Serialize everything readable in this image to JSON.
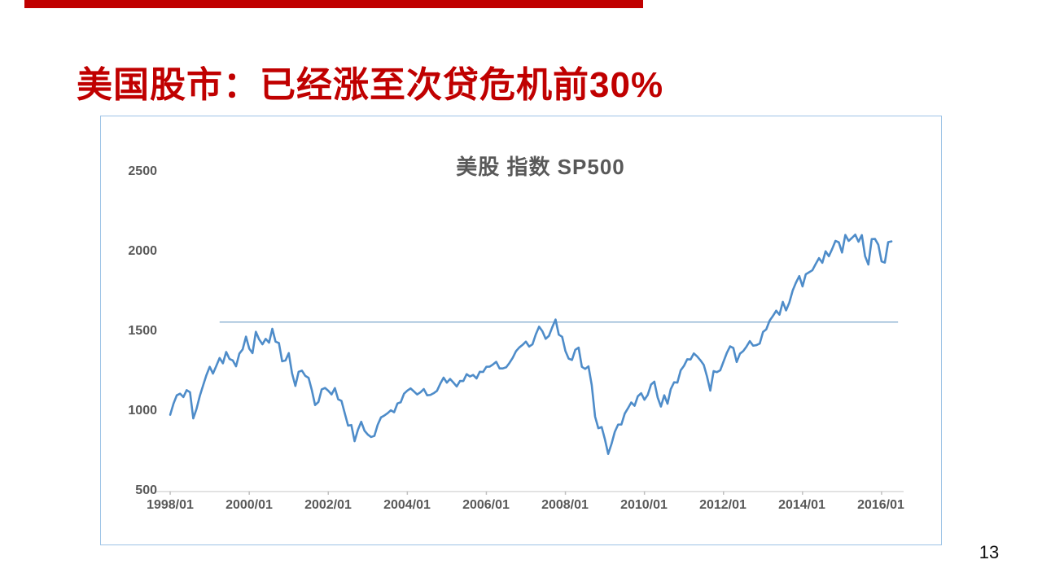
{
  "slide": {
    "title": "美国股市：已经涨至次贷危机前30%",
    "page_number": "13",
    "accent_color": "#c00000"
  },
  "chart_data": {
    "type": "line",
    "title": "美股 指数 SP500",
    "xlabel": "",
    "ylabel": "",
    "ylim": [
      500,
      2500
    ],
    "y_ticks": [
      "2500",
      "2000",
      "1500",
      "1000",
      "500"
    ],
    "y_tick_values": [
      2500,
      2000,
      1500,
      1000,
      500
    ],
    "x_ticks": [
      "1998/01",
      "2000/01",
      "2002/01",
      "2004/01",
      "2006/01",
      "2008/01",
      "2010/01",
      "2012/01",
      "2014/01",
      "2016/01"
    ],
    "x_tick_interval_months": 24,
    "grid": false,
    "legend_position": "none",
    "line_color": "#4e8cc9",
    "axis_line_color": "#d9d9d9",
    "tick_mark_color": "#bfbfbf",
    "text_color": "#595959",
    "reference_line": {
      "value": 1560,
      "color": "#7ba7cc",
      "start_month_index": 15,
      "end_month_index": 221
    },
    "series": [
      {
        "name": "SP500",
        "start": "1998/01",
        "freq": "monthly",
        "values": [
          980,
          1049,
          1102,
          1112,
          1091,
          1134,
          1121,
          957,
          1017,
          1099,
          1164,
          1229,
          1280,
          1238,
          1286,
          1335,
          1302,
          1373,
          1329,
          1320,
          1283,
          1363,
          1389,
          1469,
          1394,
          1366,
          1499,
          1452,
          1421,
          1455,
          1431,
          1518,
          1437,
          1429,
          1315,
          1320,
          1366,
          1240,
          1160,
          1249,
          1256,
          1224,
          1211,
          1134,
          1041,
          1060,
          1139,
          1148,
          1130,
          1107,
          1147,
          1077,
          1067,
          990,
          912,
          916,
          815,
          886,
          936,
          880,
          856,
          841,
          848,
          917,
          964,
          975,
          990,
          1008,
          996,
          1051,
          1058,
          1112,
          1131,
          1145,
          1126,
          1107,
          1121,
          1141,
          1102,
          1104,
          1115,
          1130,
          1174,
          1212,
          1181,
          1204,
          1181,
          1157,
          1192,
          1191,
          1234,
          1220,
          1229,
          1207,
          1249,
          1248,
          1280,
          1281,
          1295,
          1311,
          1270,
          1270,
          1277,
          1304,
          1336,
          1378,
          1401,
          1418,
          1438,
          1407,
          1421,
          1482,
          1531,
          1503,
          1455,
          1474,
          1527,
          1576,
          1481,
          1468,
          1379,
          1331,
          1323,
          1386,
          1400,
          1280,
          1267,
          1283,
          1166,
          969,
          896,
          903,
          826,
          735,
          798,
          873,
          919,
          919,
          987,
          1021,
          1057,
          1036,
          1096,
          1115,
          1074,
          1104,
          1169,
          1187,
          1089,
          1031,
          1102,
          1049,
          1141,
          1183,
          1181,
          1258,
          1286,
          1327,
          1326,
          1364,
          1345,
          1321,
          1292,
          1219,
          1131,
          1253,
          1247,
          1258,
          1312,
          1366,
          1408,
          1398,
          1310,
          1362,
          1379,
          1407,
          1441,
          1412,
          1416,
          1426,
          1498,
          1515,
          1569,
          1598,
          1631,
          1606,
          1686,
          1633,
          1682,
          1757,
          1806,
          1848,
          1783,
          1859,
          1872,
          1884,
          1924,
          1960,
          1931,
          2003,
          1972,
          2018,
          2068,
          2059,
          1995,
          2105,
          2068,
          2086,
          2107,
          2063,
          2104,
          1972,
          1920,
          2079,
          2080,
          2044,
          1940,
          1932,
          2060,
          2065
        ]
      }
    ]
  }
}
